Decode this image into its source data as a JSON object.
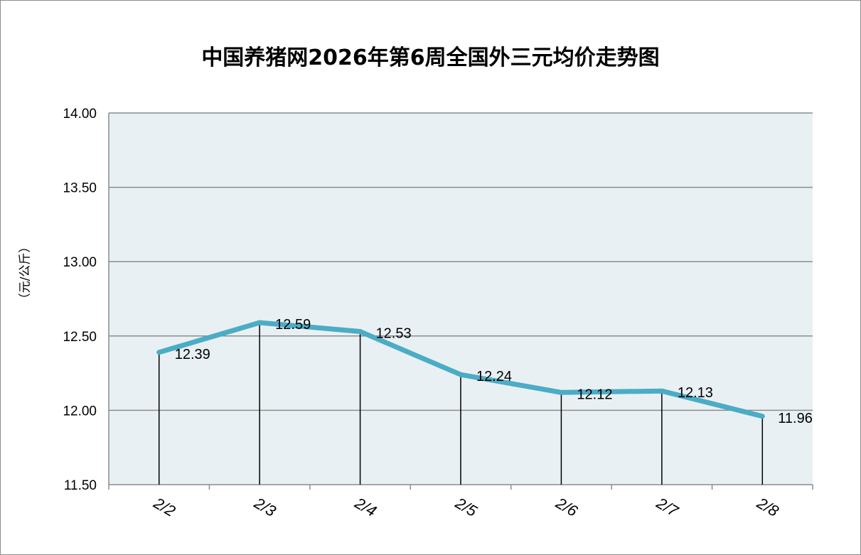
{
  "chart_data": {
    "type": "line",
    "title": "中国养猪网2026年第6周全国外三元均价走势图",
    "xlabel": "",
    "ylabel": "（元/公斤）",
    "categories": [
      "2/2",
      "2/3",
      "2/4",
      "2/5",
      "2/6",
      "2/7",
      "2/8"
    ],
    "series": [
      {
        "values": [
          12.39,
          12.59,
          12.53,
          12.24,
          12.12,
          12.13,
          11.96
        ]
      }
    ],
    "data_labels": [
      "12.39",
      "12.59",
      "12.53",
      "12.24",
      "12.12",
      "12.13",
      "11.96"
    ],
    "ylim": [
      11.5,
      14.0
    ],
    "yticks": [
      "11.50",
      "12.00",
      "12.50",
      "13.00",
      "13.50",
      "14.00"
    ],
    "ytick_values": [
      11.5,
      12.0,
      12.5,
      13.0,
      13.5,
      14.0
    ],
    "grid": true,
    "drop_lines": true,
    "colors": {
      "line": "#4bacc6",
      "plot_bg": "#e9f0f3",
      "grid": "#8c8c8c",
      "drop_line": "#000000"
    }
  }
}
